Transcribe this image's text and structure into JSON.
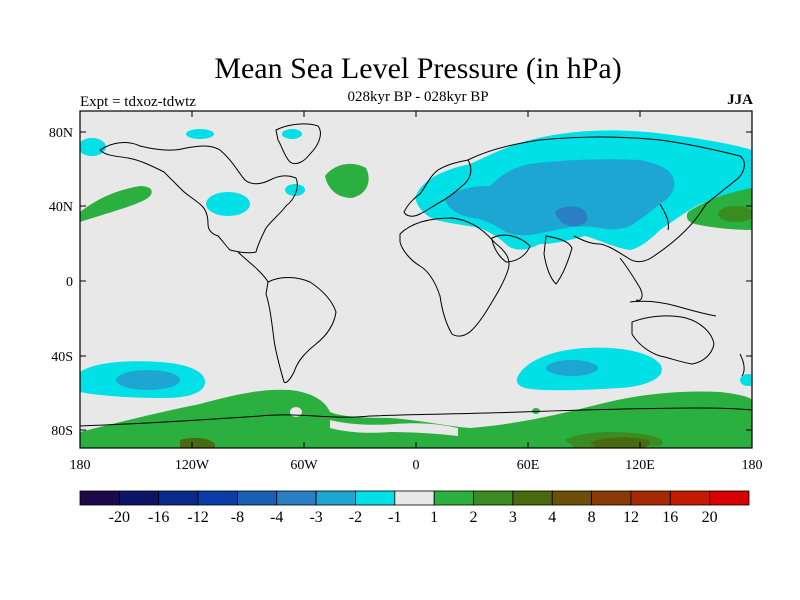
{
  "title": "Mean Sea Level Pressure (in hPa)",
  "subtitle": "028kyr BP - 028kyr BP",
  "experiment": "Expt = tdxoz-tdwtz",
  "season": "JJA",
  "axes": {
    "lat_ticks": [
      "80N",
      "40N",
      "0",
      "40S",
      "80S"
    ],
    "lon_ticks": [
      "180",
      "120W",
      "60W",
      "0",
      "60E",
      "120E",
      "180"
    ]
  },
  "colorbar": {
    "colors": [
      "#1a0a4a",
      "#0d1566",
      "#0a2a8a",
      "#0a3ea6",
      "#1a5fb4",
      "#2a7fc4",
      "#1ea6d2",
      "#00e0e6",
      "#e8e8e8",
      "#2bb040",
      "#3a8c20",
      "#4a6a10",
      "#6a5008",
      "#8a3a06",
      "#a52a04",
      "#c51a02",
      "#d80000"
    ],
    "labels": [
      "-20",
      "-16",
      "-12",
      "-8",
      "-4",
      "-3",
      "-2",
      "-1",
      "1",
      "2",
      "3",
      "4",
      "8",
      "12",
      "16",
      "20"
    ]
  },
  "legend_colors": {
    "background": "#e8e8e8",
    "cyan": "#00e0e6",
    "blue": "#1ea6d2",
    "dark_blue": "#2a7fc4",
    "green": "#2bb040",
    "dark_green": "#3a8c20",
    "olive": "#4a6a10",
    "brown": "#6a5008"
  }
}
